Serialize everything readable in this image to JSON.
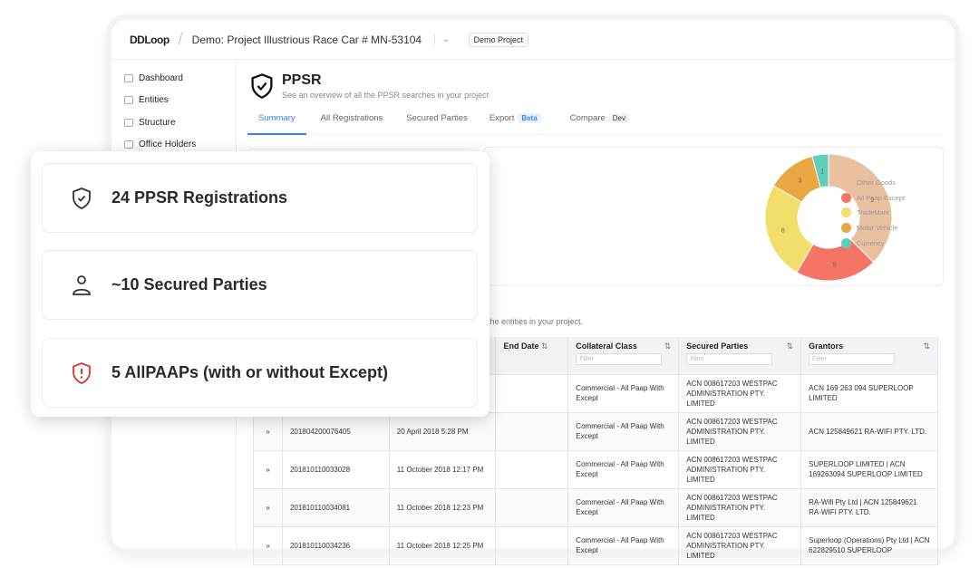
{
  "header": {
    "logo": "DDLoop",
    "project": "Demo: Project Illustrious Race Car # MN-53104",
    "badge": "Demo Project"
  },
  "sidebar": {
    "items": [
      {
        "label": "Dashboard"
      },
      {
        "label": "Entities"
      },
      {
        "label": "Structure"
      },
      {
        "label": "Office Holders"
      }
    ]
  },
  "page": {
    "title": "PPSR",
    "subtitle": "See an overview of all the PPSR searches in your project",
    "note": "the entities in your project."
  },
  "tabs": [
    {
      "label": "Summary"
    },
    {
      "label": "All Registrations"
    },
    {
      "label": "Secured Parties"
    },
    {
      "label": "Export",
      "tag": "Beta"
    },
    {
      "label": "Compare",
      "tag": "Dev"
    }
  ],
  "chart_data": {
    "type": "pie",
    "donut": true,
    "categories": [
      "Other Goods",
      "All Paap Except",
      "TradeMark",
      "Motor Vehicle",
      "Currency"
    ],
    "values": [
      9,
      5,
      6,
      3,
      1
    ],
    "colors": [
      "#e9c0a0",
      "#f47466",
      "#f2de6a",
      "#e9a743",
      "#5fcfbd"
    ],
    "legend": "right"
  },
  "table": {
    "headers": [
      "",
      "",
      "",
      "End Date",
      "Collateral Class",
      "Secured Parties",
      "Grantors"
    ],
    "filter_placeholder": "Filter",
    "rows": [
      [
        "",
        "",
        "",
        "",
        "Commercial - All Paap With Except",
        "ACN 008617203 WESTPAC ADMINISTRATION PTY. LIMITED",
        "ACN 169 263 094 SUPERLOOP LIMITED"
      ],
      [
        "»",
        "201804200076405",
        "20 April 2018 5:28 PM",
        "",
        "Commercial - All Paap With Except",
        "ACN 008617203 WESTPAC ADMINISTRATION PTY. LIMITED",
        "ACN 125849621 RA-WIFI PTY. LTD."
      ],
      [
        "»",
        "201810110033028",
        "11 October 2018 12:17 PM",
        "",
        "Commercial - All Paap With Except",
        "ACN 008617203 WESTPAC ADMINISTRATION PTY. LIMITED",
        "SUPERLOOP LIMITED | ACN 169263094 SUPERLOOP LIMITED"
      ],
      [
        "»",
        "201810110034081",
        "11 October 2018 12:23 PM",
        "",
        "Commercial - All Paap With Except",
        "ACN 008617203 WESTPAC ADMINISTRATION PTY. LIMITED",
        "RA-Wifi Pty Ltd | ACN 125849621 RA-WIFI PTY. LTD."
      ],
      [
        "»",
        "201810110034236",
        "11 October 2018 12:25 PM",
        "",
        "Commercial - All Paap With Except",
        "ACN 008617203 WESTPAC ADMINISTRATION PTY. LIMITED",
        "Superloop (Operations) Pty Ltd | ACN 622829510 SUPERLOOP"
      ]
    ]
  },
  "summary": {
    "items": [
      {
        "label": "24 PPSR Registrations",
        "icon": "shield-check-icon"
      },
      {
        "label": "~10 Secured Parties",
        "icon": "user-icon"
      },
      {
        "label": "5 AllPAAPs (with or without Except)",
        "icon": "shield-alert-icon",
        "color": "#e0332f"
      }
    ]
  }
}
